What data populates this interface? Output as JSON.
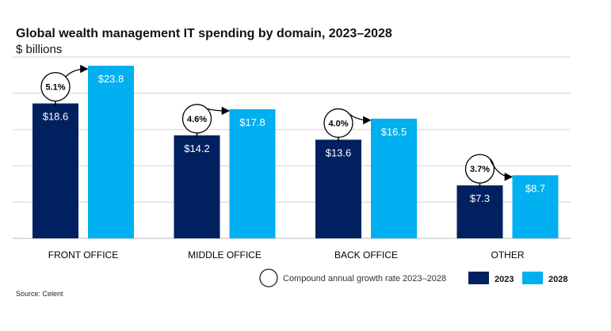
{
  "chart_data": {
    "type": "bar",
    "title": "Global wealth management IT spending by domain, 2023–2028",
    "subtitle": "$ billions",
    "categories": [
      "FRONT OFFICE",
      "MIDDLE OFFICE",
      "BACK OFFICE",
      "OTHER"
    ],
    "series": [
      {
        "name": "2023",
        "color": "#002060",
        "values": [
          18.6,
          14.2,
          13.6,
          7.3
        ],
        "labels": [
          "$18.6",
          "$14.2",
          "$13.6",
          "$7.3"
        ]
      },
      {
        "name": "2028",
        "color": "#00B0F0",
        "values": [
          23.8,
          17.8,
          16.5,
          8.7
        ],
        "labels": [
          "$23.8",
          "$17.8",
          "$16.5",
          "$8.7"
        ]
      }
    ],
    "cagr": [
      "5.1%",
      "4.6%",
      "4.0%",
      "3.7%"
    ],
    "cagr_legend": "Compound annual growth rate 2023–2028",
    "ylim": [
      0,
      25
    ],
    "grid": true,
    "legend_placement": "bottom-right",
    "source": "Source: Celent"
  }
}
